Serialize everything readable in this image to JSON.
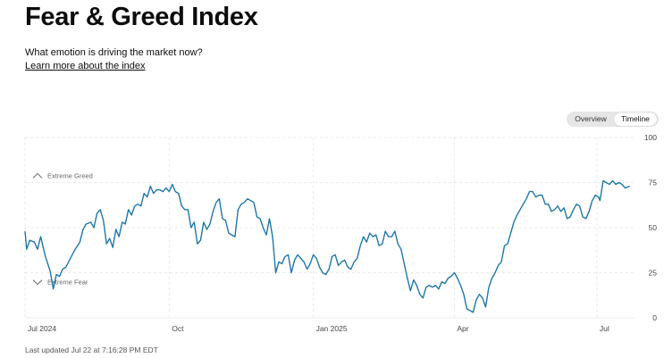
{
  "header": {
    "title": "Fear & Greed Index",
    "subtitle": "What emotion is driving the market now?",
    "learn_more": "Learn more about the index"
  },
  "view_toggle": {
    "options": [
      "Overview",
      "Timeline"
    ],
    "selected": "Timeline"
  },
  "footer": {
    "last_updated": "Last updated Jul 22 at 7:16:28 PM EDT"
  },
  "colors": {
    "line": "#1f77a8",
    "grid": "#e4e4e4",
    "axis_text": "#444444",
    "annotation": "#666666"
  },
  "chart_data": {
    "type": "line",
    "title": "",
    "xlabel": "",
    "ylabel": "",
    "ylim": [
      0,
      100
    ],
    "yticks": [
      0,
      25,
      50,
      75,
      100
    ],
    "grid": true,
    "x_range": [
      "2024-07-01",
      "2025-07-25"
    ],
    "x_ticks": [
      {
        "label": "Jul 2024",
        "date": "2024-07-01"
      },
      {
        "label": "Oct",
        "date": "2024-10-01"
      },
      {
        "label": "Jan 2025",
        "date": "2025-01-01"
      },
      {
        "label": "Apr",
        "date": "2025-04-01"
      },
      {
        "label": "Jul",
        "date": "2025-07-01"
      }
    ],
    "annotations": [
      {
        "text": "Extreme Greed",
        "icon": "chevron-up-icon",
        "y": 79
      },
      {
        "text": "Extreme Fear",
        "icon": "chevron-down-icon",
        "y": 20
      }
    ],
    "series": [
      {
        "name": "",
        "points": [
          [
            "2024-07-01",
            48
          ],
          [
            "2024-07-02",
            38
          ],
          [
            "2024-07-04",
            43
          ],
          [
            "2024-07-07",
            42
          ],
          [
            "2024-07-09",
            38
          ],
          [
            "2024-07-11",
            45
          ],
          [
            "2024-07-14",
            34
          ],
          [
            "2024-07-17",
            26
          ],
          [
            "2024-07-19",
            16
          ],
          [
            "2024-07-21",
            24
          ],
          [
            "2024-07-23",
            23
          ],
          [
            "2024-07-25",
            27
          ],
          [
            "2024-07-27",
            28
          ],
          [
            "2024-07-30",
            33
          ],
          [
            "2024-08-02",
            38
          ],
          [
            "2024-08-05",
            42
          ],
          [
            "2024-08-07",
            49
          ],
          [
            "2024-08-09",
            52
          ],
          [
            "2024-08-12",
            53
          ],
          [
            "2024-08-14",
            50
          ],
          [
            "2024-08-16",
            58
          ],
          [
            "2024-08-18",
            60
          ],
          [
            "2024-08-20",
            54
          ],
          [
            "2024-08-22",
            41
          ],
          [
            "2024-08-24",
            44
          ],
          [
            "2024-08-26",
            39
          ],
          [
            "2024-08-28",
            49
          ],
          [
            "2024-08-30",
            45
          ],
          [
            "2024-09-01",
            53
          ],
          [
            "2024-09-03",
            52
          ],
          [
            "2024-09-05",
            60
          ],
          [
            "2024-09-07",
            57
          ],
          [
            "2024-09-09",
            62
          ],
          [
            "2024-09-11",
            63
          ],
          [
            "2024-09-13",
            62
          ],
          [
            "2024-09-15",
            69
          ],
          [
            "2024-09-17",
            67
          ],
          [
            "2024-09-19",
            73
          ],
          [
            "2024-09-21",
            69
          ],
          [
            "2024-09-23",
            71
          ],
          [
            "2024-09-25",
            71
          ],
          [
            "2024-09-27",
            70
          ],
          [
            "2024-09-29",
            72
          ],
          [
            "2024-10-01",
            70
          ],
          [
            "2024-10-03",
            74
          ],
          [
            "2024-10-05",
            70
          ],
          [
            "2024-10-07",
            69
          ],
          [
            "2024-10-09",
            62
          ],
          [
            "2024-10-11",
            60
          ],
          [
            "2024-10-13",
            60
          ],
          [
            "2024-10-15",
            50
          ],
          [
            "2024-10-17",
            53
          ],
          [
            "2024-10-19",
            41
          ],
          [
            "2024-10-21",
            43
          ],
          [
            "2024-10-23",
            53
          ],
          [
            "2024-10-25",
            49
          ],
          [
            "2024-10-27",
            52
          ],
          [
            "2024-10-29",
            59
          ],
          [
            "2024-10-31",
            64
          ],
          [
            "2024-11-02",
            66
          ],
          [
            "2024-11-04",
            55
          ],
          [
            "2024-11-06",
            54
          ],
          [
            "2024-11-08",
            47
          ],
          [
            "2024-11-10",
            46
          ],
          [
            "2024-11-12",
            45
          ],
          [
            "2024-11-14",
            60
          ],
          [
            "2024-11-16",
            63
          ],
          [
            "2024-11-18",
            64
          ],
          [
            "2024-11-20",
            66
          ],
          [
            "2024-11-22",
            65
          ],
          [
            "2024-11-24",
            64
          ],
          [
            "2024-11-26",
            56
          ],
          [
            "2024-11-28",
            55
          ],
          [
            "2024-11-30",
            50
          ],
          [
            "2024-12-02",
            46
          ],
          [
            "2024-12-04",
            55
          ],
          [
            "2024-12-06",
            45
          ],
          [
            "2024-12-08",
            25
          ],
          [
            "2024-12-10",
            31
          ],
          [
            "2024-12-12",
            30
          ],
          [
            "2024-12-14",
            34
          ],
          [
            "2024-12-16",
            35
          ],
          [
            "2024-12-18",
            25
          ],
          [
            "2024-12-20",
            32
          ],
          [
            "2024-12-22",
            35
          ],
          [
            "2024-12-24",
            33
          ],
          [
            "2024-12-26",
            31
          ],
          [
            "2024-12-28",
            27
          ],
          [
            "2024-12-30",
            30
          ],
          [
            "2025-01-01",
            35
          ],
          [
            "2025-01-03",
            33
          ],
          [
            "2025-01-05",
            28
          ],
          [
            "2025-01-07",
            25
          ],
          [
            "2025-01-09",
            24
          ],
          [
            "2025-01-11",
            27
          ],
          [
            "2025-01-13",
            34
          ],
          [
            "2025-01-15",
            35
          ],
          [
            "2025-01-17",
            29
          ],
          [
            "2025-01-19",
            31
          ],
          [
            "2025-01-21",
            32
          ],
          [
            "2025-01-23",
            28
          ],
          [
            "2025-01-25",
            27
          ],
          [
            "2025-01-27",
            31
          ],
          [
            "2025-01-29",
            33
          ],
          [
            "2025-01-31",
            40
          ],
          [
            "2025-02-02",
            45
          ],
          [
            "2025-02-04",
            42
          ],
          [
            "2025-02-06",
            47
          ],
          [
            "2025-02-08",
            45
          ],
          [
            "2025-02-10",
            46
          ],
          [
            "2025-02-12",
            40
          ],
          [
            "2025-02-14",
            41
          ],
          [
            "2025-02-16",
            48
          ],
          [
            "2025-02-18",
            45
          ],
          [
            "2025-02-20",
            45
          ],
          [
            "2025-02-22",
            48
          ],
          [
            "2025-02-24",
            41
          ],
          [
            "2025-02-26",
            38
          ],
          [
            "2025-02-28",
            30
          ],
          [
            "2025-03-02",
            22
          ],
          [
            "2025-03-04",
            15
          ],
          [
            "2025-03-06",
            21
          ],
          [
            "2025-03-08",
            18
          ],
          [
            "2025-03-10",
            13
          ],
          [
            "2025-03-12",
            11
          ],
          [
            "2025-03-14",
            17
          ],
          [
            "2025-03-16",
            18
          ],
          [
            "2025-03-18",
            17
          ],
          [
            "2025-03-20",
            18
          ],
          [
            "2025-03-22",
            16
          ],
          [
            "2025-03-24",
            20
          ],
          [
            "2025-03-26",
            19
          ],
          [
            "2025-03-28",
            22
          ],
          [
            "2025-03-30",
            23
          ],
          [
            "2025-04-01",
            25
          ],
          [
            "2025-04-03",
            22
          ],
          [
            "2025-04-05",
            18
          ],
          [
            "2025-04-07",
            13
          ],
          [
            "2025-04-09",
            5
          ],
          [
            "2025-04-11",
            4
          ],
          [
            "2025-04-13",
            3
          ],
          [
            "2025-04-15",
            10
          ],
          [
            "2025-04-17",
            13
          ],
          [
            "2025-04-19",
            11
          ],
          [
            "2025-04-21",
            6
          ],
          [
            "2025-04-23",
            17
          ],
          [
            "2025-04-25",
            22
          ],
          [
            "2025-04-27",
            25
          ],
          [
            "2025-04-29",
            29
          ],
          [
            "2025-05-01",
            31
          ],
          [
            "2025-05-03",
            40
          ],
          [
            "2025-05-05",
            41
          ],
          [
            "2025-05-07",
            47
          ],
          [
            "2025-05-09",
            53
          ],
          [
            "2025-05-11",
            57
          ],
          [
            "2025-05-13",
            60
          ],
          [
            "2025-05-15",
            63
          ],
          [
            "2025-05-17",
            66
          ],
          [
            "2025-05-19",
            70
          ],
          [
            "2025-05-21",
            70
          ],
          [
            "2025-05-23",
            67
          ],
          [
            "2025-05-25",
            68
          ],
          [
            "2025-05-27",
            68
          ],
          [
            "2025-05-29",
            63
          ],
          [
            "2025-05-31",
            63
          ],
          [
            "2025-06-02",
            59
          ],
          [
            "2025-06-04",
            60
          ],
          [
            "2025-06-06",
            62
          ],
          [
            "2025-06-08",
            59
          ],
          [
            "2025-06-10",
            61
          ],
          [
            "2025-06-12",
            55
          ],
          [
            "2025-06-14",
            56
          ],
          [
            "2025-06-16",
            60
          ],
          [
            "2025-06-18",
            63
          ],
          [
            "2025-06-20",
            62
          ],
          [
            "2025-06-22",
            56
          ],
          [
            "2025-06-24",
            55
          ],
          [
            "2025-06-26",
            59
          ],
          [
            "2025-06-28",
            65
          ],
          [
            "2025-06-30",
            68
          ],
          [
            "2025-07-02",
            67
          ],
          [
            "2025-07-03",
            65
          ],
          [
            "2025-07-05",
            76
          ],
          [
            "2025-07-07",
            75
          ],
          [
            "2025-07-09",
            74
          ],
          [
            "2025-07-11",
            76
          ],
          [
            "2025-07-13",
            74
          ],
          [
            "2025-07-15",
            75
          ],
          [
            "2025-07-17",
            74
          ],
          [
            "2025-07-19",
            72
          ],
          [
            "2025-07-22",
            73
          ]
        ]
      }
    ]
  }
}
